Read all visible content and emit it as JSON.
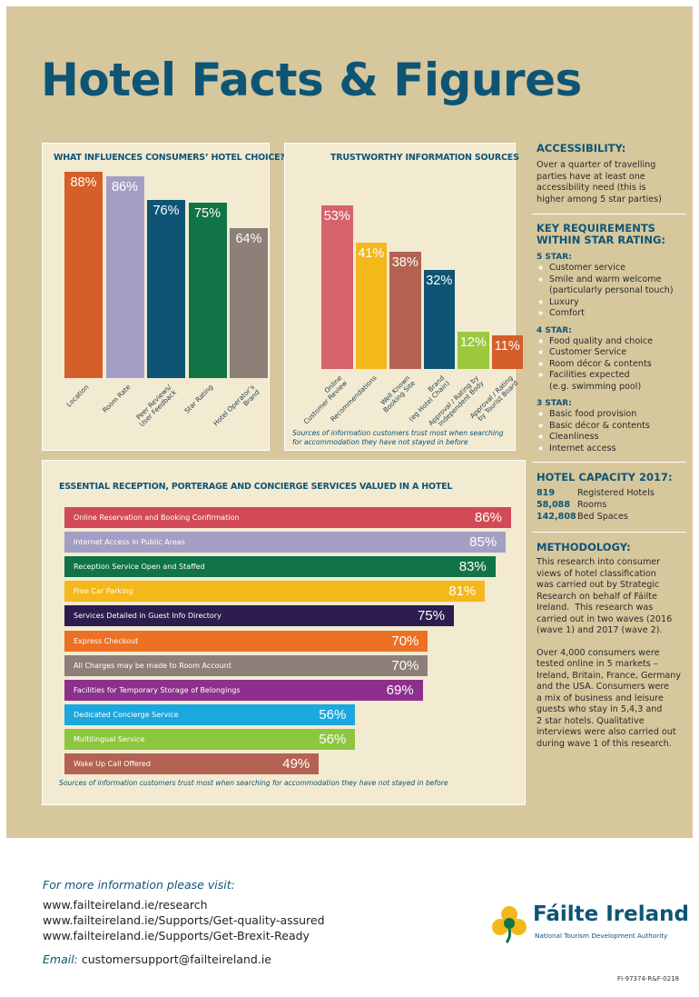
{
  "title": "Hotel Facts & Figures",
  "influences": {
    "title": "WHAT INFLUENCES CONSUMERS’ HOTEL CHOICE?",
    "chart_data": {
      "type": "bar",
      "title": "WHAT INFLUENCES CONSUMERS’ HOTEL CHOICE?",
      "categories": [
        "Location",
        "Room Rate",
        "Peer Reviews/\nUser Feedback",
        "Star Rating",
        "Hotel Operator’s\nBrand"
      ],
      "values": [
        88,
        86,
        76,
        75,
        64
      ],
      "labels": [
        "88%",
        "86%",
        "76%",
        "75%",
        "64%"
      ],
      "colors": [
        "#d45f28",
        "#a39fc4",
        "#0e5575",
        "#117447",
        "#8d8079"
      ],
      "ylim": [
        0,
        100
      ],
      "xlabel": "",
      "ylabel": ""
    }
  },
  "trust": {
    "title": "TRUSTWORTHY INFORMATION SOURCES",
    "caption": "Sources of information customers trust most when searching\nfor accommodation they have not stayed in before",
    "chart_data": {
      "type": "bar",
      "title": "TRUSTWORTHY INFORMATION SOURCES",
      "categories": [
        "Online\nCustomer Review",
        "Recommendations",
        "Well Known\nBooking Site",
        "Brand\n(eg Hotel Chain)",
        "Approval / Rating by\nIndependent Body",
        "Approval / Rating\nby Tourist Board"
      ],
      "values": [
        53,
        41,
        38,
        32,
        12,
        11
      ],
      "labels": [
        "53%",
        "41%",
        "38%",
        "32%",
        "12%",
        "11%"
      ],
      "colors": [
        "#d6626d",
        "#f4b81a",
        "#b46352",
        "#0e5575",
        "#9cc83e",
        "#d45f28"
      ],
      "ylim": [
        0,
        60
      ],
      "xlabel": "",
      "ylabel": ""
    }
  },
  "reception": {
    "title": "ESSENTIAL RECEPTION, PORTERAGE AND CONCIERGE SERVICES VALUED IN A HOTEL",
    "caption": "Sources of information customers trust most when searching for accommodation they have not stayed in before",
    "chart_data": {
      "type": "bar",
      "orientation": "horizontal",
      "title": "ESSENTIAL RECEPTION, PORTERAGE AND CONCIERGE SERVICES VALUED IN A HOTEL",
      "categories": [
        "Online Reservation and Booking Confirmation",
        "Internet Access in Public Areas",
        "Reception Service Open and Staffed",
        "Free Car Parking",
        "Services Detailed in Guest Info Directory",
        "Express Checkout",
        "All Charges may be made to Room Account",
        "Facilities for Temporary Storage of Belongings",
        "Dedicated Concierge Service",
        "Multilingual Service",
        "Wake Up Call Offered"
      ],
      "values": [
        86,
        85,
        83,
        81,
        75,
        70,
        70,
        69,
        56,
        56,
        49
      ],
      "labels": [
        "86%",
        "85%",
        "83%",
        "81%",
        "75%",
        "70%",
        "70%",
        "69%",
        "56%",
        "56%",
        "49%"
      ],
      "colors": [
        "#d14a55",
        "#a39fc4",
        "#117447",
        "#f4b81a",
        "#2c1d4e",
        "#ec7124",
        "#8d8079",
        "#8d2f8c",
        "#1ba8df",
        "#8dc63f",
        "#b46352"
      ],
      "xlim": [
        0,
        100
      ],
      "xlabel": "",
      "ylabel": ""
    }
  },
  "sidebar": {
    "accessibility_heading": "ACCESSIBILITY:",
    "accessibility_text": "Over a quarter of travelling\nparties have at least one\naccessibility need (this is\nhigher among 5 star parties)",
    "key_req_heading": "KEY REQUIREMENTS\nWITHIN STAR RATING:",
    "star_groups": [
      {
        "heading": "5 STAR:",
        "items": [
          "Customer service",
          "Smile and warm welcome\n(particularly personal touch)",
          "Luxury",
          "Comfort"
        ]
      },
      {
        "heading": "4 STAR:",
        "items": [
          "Food quality and choice",
          "Customer Service",
          "Room décor & contents",
          "Facilities expected\n(e.g. swimming pool)"
        ]
      },
      {
        "heading": "3 STAR:",
        "items": [
          "Basic food provision",
          "Basic décor & contents",
          "Cleanliness",
          "Internet access"
        ]
      }
    ],
    "capacity_heading": "HOTEL CAPACITY 2017:",
    "capacity": [
      {
        "num": "819",
        "label": "Registered Hotels"
      },
      {
        "num": "58,088",
        "label": "Rooms"
      },
      {
        "num": "142,808",
        "label": "Bed Spaces"
      }
    ],
    "methodology_heading": "METHODOLOGY:",
    "methodology_p1": "This research into consumer\nviews of hotel classification\nwas carried out by Strategic\nResearch on behalf of Fáilte\nIreland.  This research was\ncarried out in two waves (2016\n(wave 1) and 2017 (wave 2).",
    "methodology_p2": "Over 4,000 consumers were\ntested online in 5 markets –\nIreland, Britain, France, Germany\nand the USA. Consumers were\na mix of business and leisure\nguests who stay in 5,4,3 and\n2 star hotels. Qualitative\ninterviews were also carried out\nduring wave 1 of this research."
  },
  "footer": {
    "heading": "For more information please visit:",
    "links": [
      "www.failteireland.ie/research",
      "www.failteireland.ie/Supports/Get-quality-assured",
      "www.failteireland.ie/Supports/Get-Brexit-Ready"
    ],
    "email_label": "Email:",
    "email": "customersupport@failteireland.ie"
  },
  "logo": {
    "name": "Fáilte Ireland",
    "tagline": "National Tourism Development Authority"
  },
  "doc_code": "FI-97374-R&F-0218",
  "colors": {
    "brand": "#0e5575",
    "background": "#d7c79d",
    "panel": "#f3ead2"
  }
}
